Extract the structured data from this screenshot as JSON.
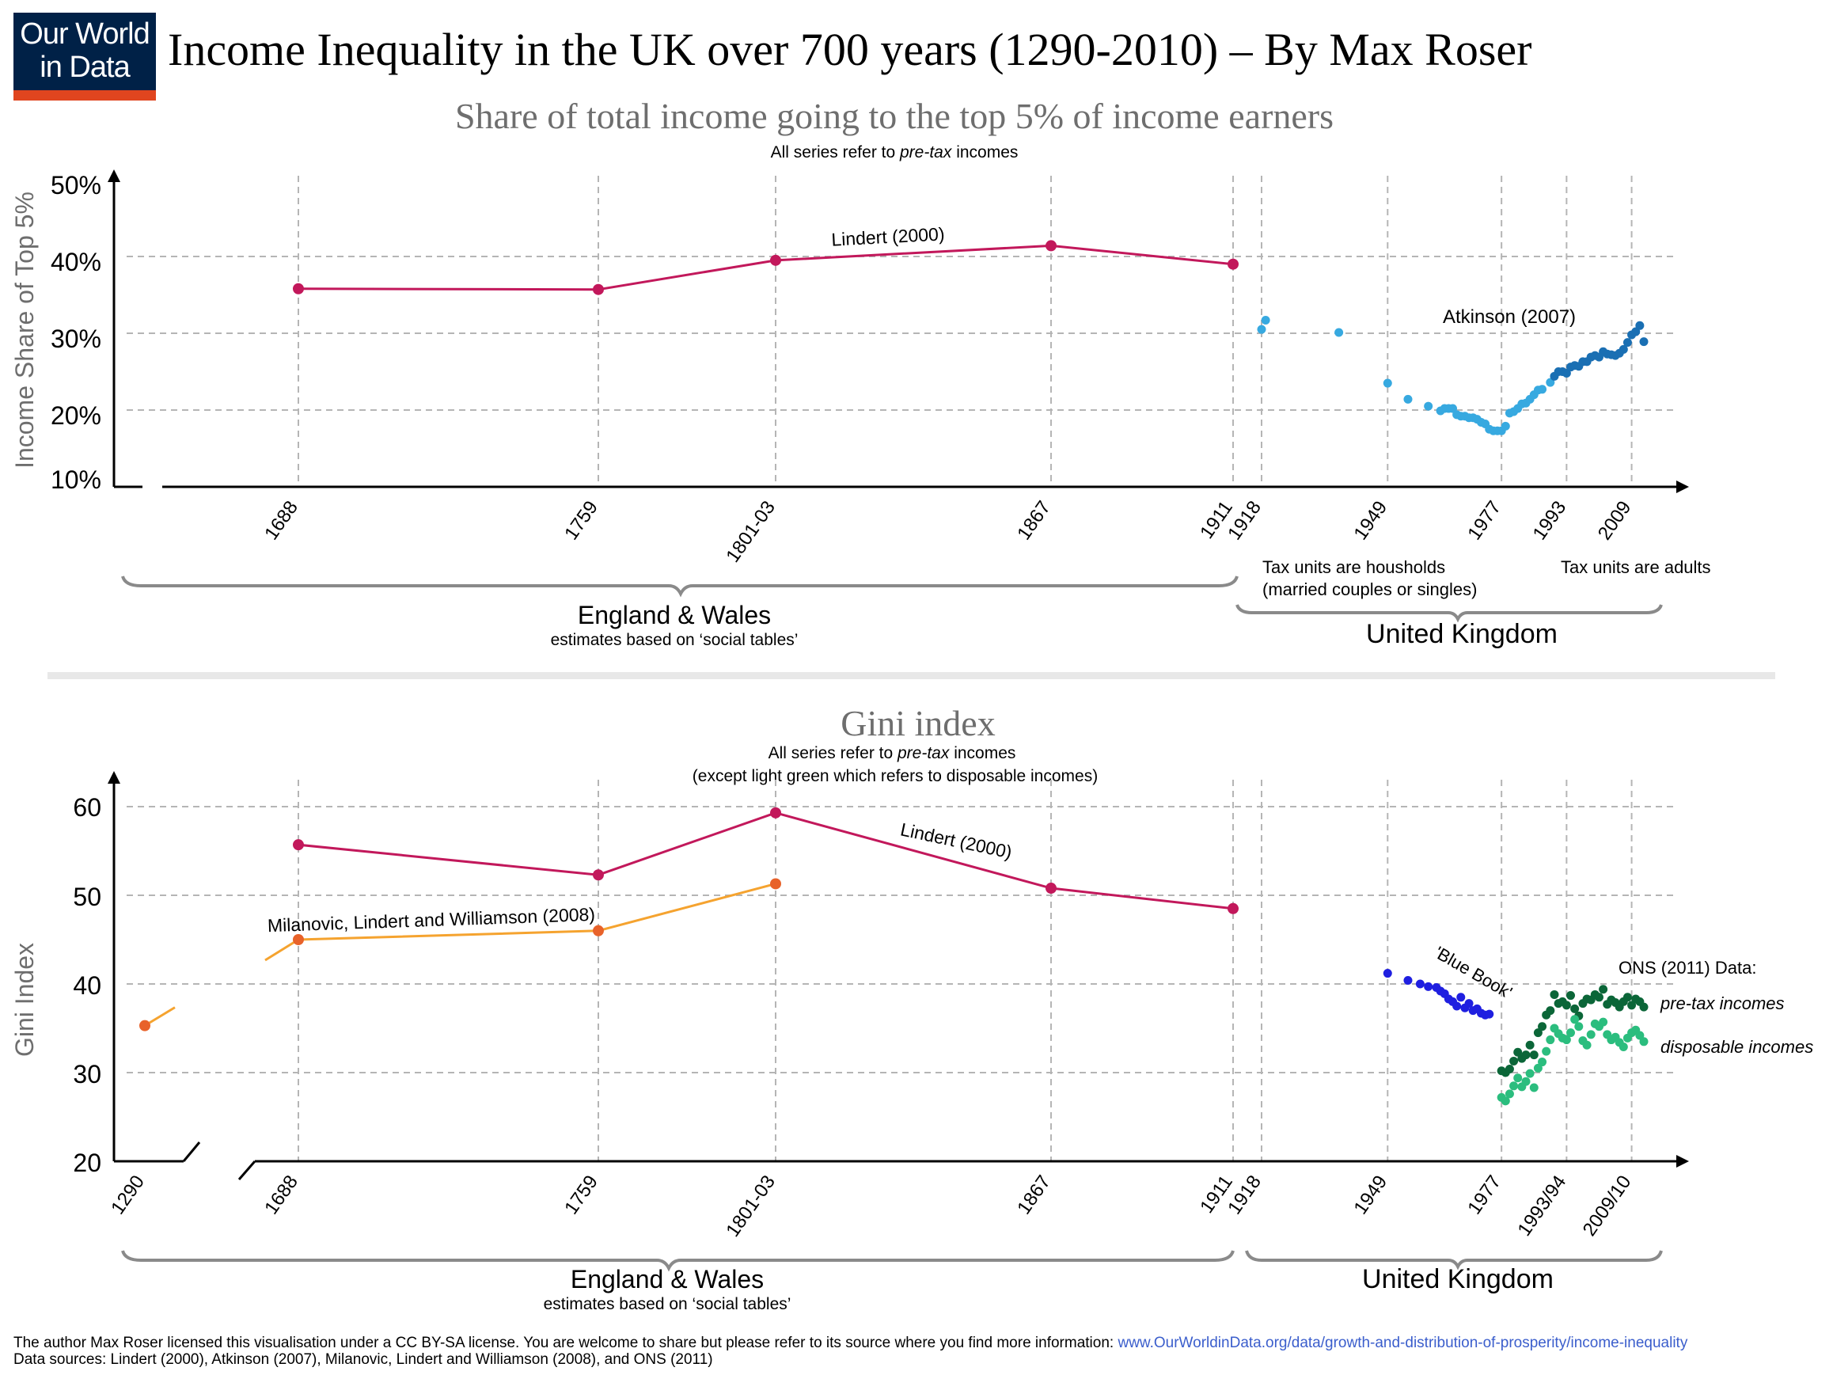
{
  "logo": {
    "line1": "Our World",
    "line2": "in Data"
  },
  "title": "Income Inequality in the UK over 700 years (1290-2010) – By Max Roser",
  "colors": {
    "lindert": "#c2185b",
    "milanovic": "#f5a32f",
    "milanovic_points": "#e8622a",
    "atkinson_light": "#37a9e0",
    "atkinson_dark": "#1a6fb3",
    "blue_book": "#1f1fe0",
    "ons_pretax": "#0b6638",
    "ons_disposable": "#2bbd7e",
    "grid": "#b5b5b5",
    "subtitle": "#6e6e6e"
  },
  "top_panel": {
    "subtitle": "Share of total income going to the top 5% of income earners",
    "note_prefix": "All series refer to ",
    "note_italic": "pre-tax",
    "note_suffix": " incomes",
    "ylabel": "Income Share of Top 5%",
    "yticks": [
      "50%",
      "40%",
      "30%",
      "20%",
      "10%"
    ],
    "xticks": [
      "1688",
      "1759",
      "1801-03",
      "1867",
      "1911",
      "1918",
      "1949",
      "1977",
      "1993",
      "2009"
    ],
    "series_labels": {
      "lindert": "Lindert (2000)",
      "atkinson": "Atkinson (2007)"
    },
    "note_households": [
      "Tax units are housholds",
      "(married couples or singles)"
    ],
    "note_adults": "Tax units are adults",
    "region_ew": "England & Wales",
    "region_ew_sub": "estimates based on ‘social tables’",
    "region_uk": "United Kingdom"
  },
  "bottom_panel": {
    "subtitle": "Gini index",
    "note1_prefix": "All series refer to ",
    "note1_italic": "pre-tax",
    "note1_suffix": " incomes",
    "note2": "(except light green which refers to disposable incomes)",
    "ylabel": "Gini Index",
    "yticks": [
      "60",
      "50",
      "40",
      "30",
      "20"
    ],
    "xticks": [
      "1290",
      "1688",
      "1759",
      "1801-03",
      "1867",
      "1911",
      "1918",
      "1949",
      "1977",
      "1993/94",
      "2009/10"
    ],
    "series_labels": {
      "lindert": "Lindert (2000)",
      "milanovic": "Milanovic, Lindert and Williamson (2008)",
      "blue_book": "'Blue Book'",
      "ons": "ONS (2011) Data:",
      "ons_pretax": "pre-tax incomes",
      "ons_disposable": "disposable incomes"
    },
    "region_ew": "England & Wales",
    "region_ew_sub": "estimates based on ‘social tables’",
    "region_uk": "United Kingdom"
  },
  "footer": {
    "line1_text": "The author Max Roser licensed this visualisation under a CC BY-SA license. You are  welcome to share but please refer to its source where you find more information: ",
    "line1_link": "www.OurWorldinData.org/data/growth-and-distribution-of-prosperity/income-inequality",
    "line2": "Data sources: Lindert (2000), Atkinson (2007), Milanovic, Lindert and Williamson (2008), and ONS (2011)"
  },
  "chart_data": [
    {
      "type": "line",
      "title": "Share of total income going to the top 5% of income earners",
      "ylabel": "Income Share of Top 5%",
      "ylim": [
        10,
        50
      ],
      "grid": true,
      "series": [
        {
          "name": "Lindert (2000)",
          "x": [
            "1688",
            "1759",
            "1801-03",
            "1867",
            "1911"
          ],
          "y": [
            35.8,
            35.7,
            39.5,
            41.4,
            39.0
          ]
        },
        {
          "name": "Atkinson (2007)",
          "points": [
            [
              1918,
              30.5
            ],
            [
              1919,
              31.7
            ],
            [
              1937,
              30.1
            ],
            [
              1949,
              23.5
            ],
            [
              1954,
              21.4
            ],
            [
              1959,
              20.5
            ],
            [
              1962,
              19.9
            ],
            [
              1963,
              20.2
            ],
            [
              1964,
              20.2
            ],
            [
              1965,
              20.2
            ],
            [
              1966,
              19.4
            ],
            [
              1967,
              19.2
            ],
            [
              1968,
              19.2
            ],
            [
              1969,
              19.0
            ],
            [
              1970,
              19.0
            ],
            [
              1971,
              18.8
            ],
            [
              1972,
              18.4
            ],
            [
              1973,
              18.2
            ],
            [
              1974,
              17.5
            ],
            [
              1975,
              17.3
            ],
            [
              1976,
              17.3
            ],
            [
              1977,
              17.3
            ],
            [
              1978,
              17.9
            ],
            [
              1979,
              19.6
            ],
            [
              1980,
              19.8
            ],
            [
              1981,
              20.2
            ],
            [
              1982,
              20.8
            ],
            [
              1983,
              20.9
            ],
            [
              1984,
              21.4
            ],
            [
              1985,
              22.0
            ],
            [
              1986,
              22.6
            ],
            [
              1987,
              22.7
            ],
            [
              1989,
              23.6
            ],
            [
              1990,
              24.4
            ],
            [
              1991,
              25.0
            ],
            [
              1992,
              25.0
            ],
            [
              1993,
              24.8
            ],
            [
              1994,
              25.6
            ],
            [
              1995,
              25.8
            ],
            [
              1996,
              25.7
            ],
            [
              1997,
              26.3
            ],
            [
              1998,
              26.3
            ],
            [
              1999,
              26.9
            ],
            [
              2000,
              27.1
            ],
            [
              2001,
              26.9
            ],
            [
              2002,
              27.6
            ],
            [
              2003,
              27.3
            ],
            [
              2004,
              27.2
            ],
            [
              2005,
              27.1
            ],
            [
              2006,
              27.4
            ],
            [
              2007,
              27.9
            ],
            [
              2008,
              28.8
            ],
            [
              2009,
              29.8
            ],
            [
              2010,
              30.2
            ],
            [
              2011,
              31.0
            ],
            [
              2012,
              28.9
            ]
          ]
        }
      ]
    },
    {
      "type": "line",
      "title": "Gini index",
      "ylabel": "Gini Index",
      "ylim": [
        20,
        60
      ],
      "grid": true,
      "series": [
        {
          "name": "Lindert (2000)",
          "x": [
            "1688",
            "1759",
            "1801-03",
            "1867",
            "1911"
          ],
          "y": [
            55.7,
            52.3,
            59.3,
            50.8,
            48.5
          ]
        },
        {
          "name": "Milanovic, Lindert and Williamson (2008)",
          "x": [
            "1290",
            "1688",
            "1759",
            "1801-03"
          ],
          "y": [
            35.3,
            45.0,
            46.0,
            51.3
          ]
        },
        {
          "name": "'Blue Book'",
          "points": [
            [
              1949,
              41.2
            ],
            [
              1954,
              40.4
            ],
            [
              1957,
              40.0
            ],
            [
              1959,
              39.7
            ],
            [
              1961,
              39.6
            ],
            [
              1962,
              39.2
            ],
            [
              1963,
              38.9
            ],
            [
              1964,
              38.3
            ],
            [
              1965,
              38.0
            ],
            [
              1966,
              37.5
            ],
            [
              1967,
              38.5
            ],
            [
              1968,
              37.3
            ],
            [
              1969,
              37.8
            ],
            [
              1970,
              37.0
            ],
            [
              1971,
              37.2
            ],
            [
              1972,
              36.7
            ],
            [
              1973,
              36.5
            ],
            [
              1974,
              36.6
            ]
          ]
        },
        {
          "name": "pre-tax incomes",
          "points": [
            [
              1977,
              30.2
            ],
            [
              1978,
              30.0
            ],
            [
              1979,
              30.4
            ],
            [
              1980,
              31.3
            ],
            [
              1981,
              32.3
            ],
            [
              1982,
              31.6
            ],
            [
              1983,
              32.0
            ],
            [
              1984,
              33.1
            ],
            [
              1985,
              32.0
            ],
            [
              1986,
              34.5
            ],
            [
              1987,
              35.2
            ],
            [
              1988,
              36.5
            ],
            [
              1989,
              37.0
            ],
            [
              1990,
              38.8
            ],
            [
              1991,
              37.8
            ],
            [
              1992,
              38.0
            ],
            [
              1993,
              37.6
            ],
            [
              1994,
              38.7
            ],
            [
              1995,
              37.2
            ],
            [
              1996,
              36.4
            ],
            [
              1997,
              37.8
            ],
            [
              1998,
              38.3
            ],
            [
              1999,
              38.2
            ],
            [
              2000,
              38.8
            ],
            [
              2001,
              38.5
            ],
            [
              2002,
              39.4
            ],
            [
              2003,
              37.7
            ],
            [
              2004,
              38.2
            ],
            [
              2005,
              37.9
            ],
            [
              2006,
              37.4
            ],
            [
              2007,
              38.0
            ],
            [
              2008,
              38.5
            ],
            [
              2009,
              37.6
            ],
            [
              2010,
              38.3
            ],
            [
              2011,
              38.0
            ],
            [
              2012,
              37.4
            ]
          ]
        },
        {
          "name": "disposable incomes",
          "points": [
            [
              1977,
              27.2
            ],
            [
              1978,
              26.8
            ],
            [
              1979,
              27.6
            ],
            [
              1980,
              28.5
            ],
            [
              1981,
              29.4
            ],
            [
              1982,
              28.4
            ],
            [
              1983,
              29.0
            ],
            [
              1984,
              29.9
            ],
            [
              1985,
              28.3
            ],
            [
              1986,
              30.5
            ],
            [
              1987,
              31.2
            ],
            [
              1988,
              32.4
            ],
            [
              1989,
              33.7
            ],
            [
              1990,
              35.0
            ],
            [
              1991,
              34.4
            ],
            [
              1992,
              33.9
            ],
            [
              1993,
              33.7
            ],
            [
              1994,
              34.5
            ],
            [
              1995,
              36.0
            ],
            [
              1996,
              35.2
            ],
            [
              1997,
              33.6
            ],
            [
              1998,
              33.1
            ],
            [
              1999,
              34.3
            ],
            [
              2000,
              35.5
            ],
            [
              2001,
              35.2
            ],
            [
              2002,
              35.7
            ],
            [
              2003,
              34.3
            ],
            [
              2004,
              33.7
            ],
            [
              2005,
              34.0
            ],
            [
              2006,
              33.4
            ],
            [
              2007,
              32.9
            ],
            [
              2008,
              33.9
            ],
            [
              2009,
              34.5
            ],
            [
              2010,
              34.8
            ],
            [
              2011,
              34.2
            ],
            [
              2012,
              33.5
            ]
          ]
        }
      ]
    }
  ]
}
